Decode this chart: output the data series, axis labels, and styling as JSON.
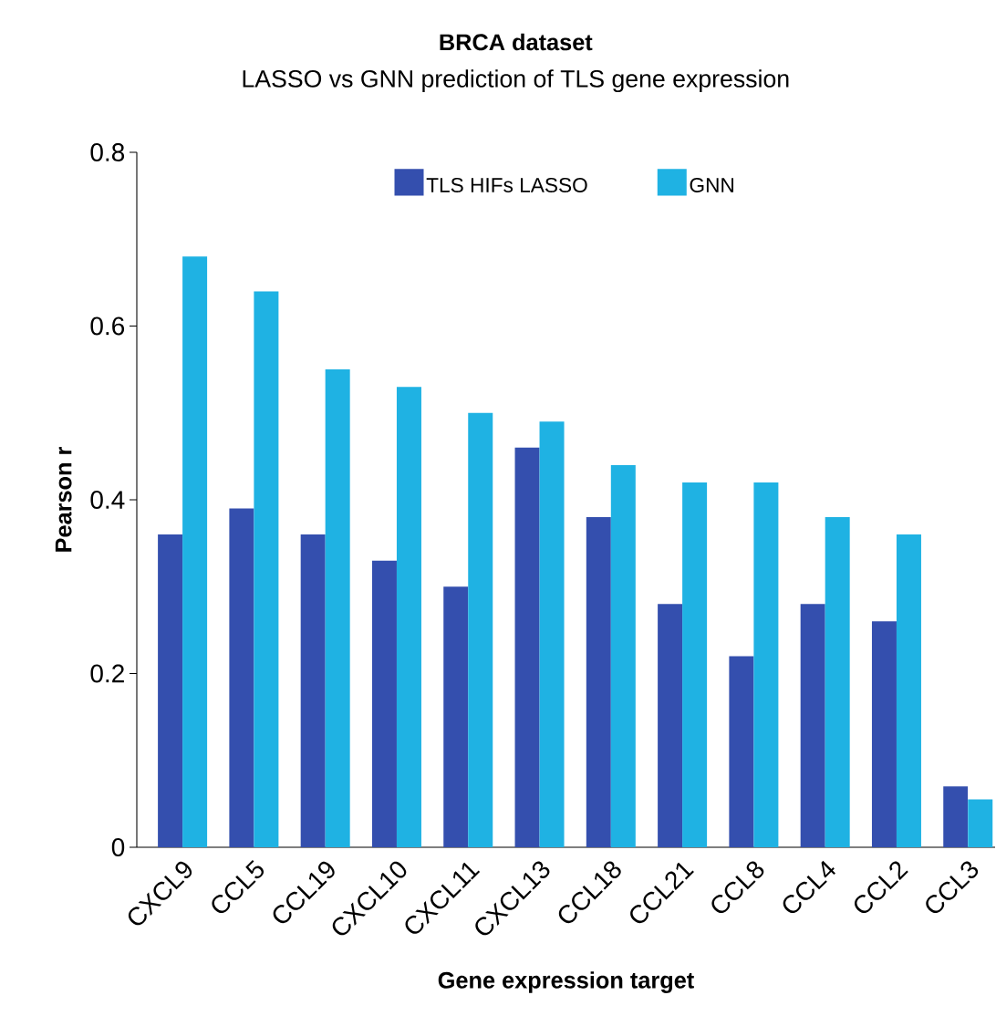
{
  "chart_data": {
    "type": "bar",
    "title": "BRCA dataset",
    "subtitle": "LASSO vs GNN prediction of TLS gene expression",
    "xlabel": "Gene expression target",
    "ylabel": "Pearson r",
    "categories": [
      "CXCL9",
      "CCL5",
      "CCL19",
      "CXCL10",
      "CXCL11",
      "CXCL13",
      "CCL18",
      "CCL21",
      "CCL8",
      "CCL4",
      "CCL2",
      "CCL3"
    ],
    "series": [
      {
        "name": "TLS HIFs LASSO",
        "color": "#344fae",
        "values": [
          0.36,
          0.39,
          0.36,
          0.33,
          0.3,
          0.46,
          0.38,
          0.28,
          0.22,
          0.28,
          0.26,
          0.07
        ]
      },
      {
        "name": "GNN",
        "color": "#1fb2e3",
        "values": [
          0.68,
          0.64,
          0.55,
          0.53,
          0.5,
          0.49,
          0.44,
          0.42,
          0.42,
          0.38,
          0.36,
          0.055
        ]
      }
    ],
    "ylim": [
      0,
      0.8
    ],
    "yticks": [
      0,
      0.2,
      0.4,
      0.6,
      0.8
    ],
    "legend": "top"
  }
}
